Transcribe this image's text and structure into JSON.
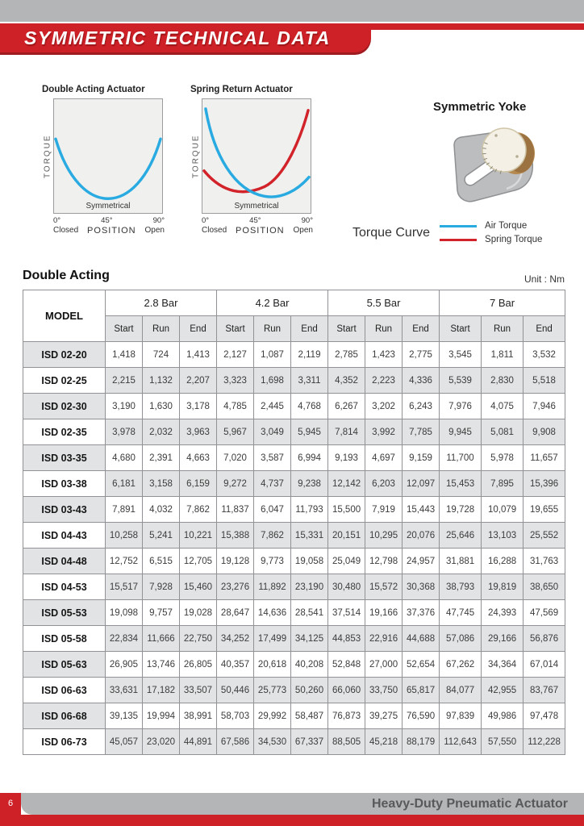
{
  "header": {
    "title": "SYMMETRIC TECHNICAL DATA",
    "accent_red": "#ce2127",
    "bar_gray": "#b3b5b7"
  },
  "charts": {
    "axis": {
      "y_label": "TORQUE",
      "x_label": "POSITION",
      "inner_label": "Symmetrical",
      "ticks": [
        "0°",
        "45°",
        "90°"
      ],
      "tick_caption_left": "Closed",
      "tick_caption_right": "Open"
    },
    "items": [
      {
        "title": "Double Acting Actuator"
      },
      {
        "title": "Spring Return Actuator"
      }
    ]
  },
  "yoke": {
    "title": "Symmetric Yoke"
  },
  "legend": {
    "label": "Torque Curve",
    "items": [
      {
        "name": "Air Torque",
        "color": "#29abe2"
      },
      {
        "name": "Spring Torque",
        "color": "#d2232a"
      }
    ]
  },
  "section": {
    "title": "Double Acting",
    "unit": "Unit : Nm"
  },
  "table": {
    "model_header": "MODEL",
    "pressure_groups": [
      "2.8 Bar",
      "4.2 Bar",
      "5.5 Bar",
      "7 Bar"
    ],
    "sub_headers": [
      "Start",
      "Run",
      "End"
    ],
    "rows": [
      {
        "model": "ISD 02-20",
        "values": [
          "1,418",
          "724",
          "1,413",
          "2,127",
          "1,087",
          "2,119",
          "2,785",
          "1,423",
          "2,775",
          "3,545",
          "1,811",
          "3,532"
        ]
      },
      {
        "model": "ISD 02-25",
        "values": [
          "2,215",
          "1,132",
          "2,207",
          "3,323",
          "1,698",
          "3,311",
          "4,352",
          "2,223",
          "4,336",
          "5,539",
          "2,830",
          "5,518"
        ]
      },
      {
        "model": "ISD 02-30",
        "values": [
          "3,190",
          "1,630",
          "3,178",
          "4,785",
          "2,445",
          "4,768",
          "6,267",
          "3,202",
          "6,243",
          "7,976",
          "4,075",
          "7,946"
        ]
      },
      {
        "model": "ISD 02-35",
        "values": [
          "3,978",
          "2,032",
          "3,963",
          "5,967",
          "3,049",
          "5,945",
          "7,814",
          "3,992",
          "7,785",
          "9,945",
          "5,081",
          "9,908"
        ]
      },
      {
        "model": "ISD 03-35",
        "values": [
          "4,680",
          "2,391",
          "4,663",
          "7,020",
          "3,587",
          "6,994",
          "9,193",
          "4,697",
          "9,159",
          "11,700",
          "5,978",
          "11,657"
        ]
      },
      {
        "model": "ISD 03-38",
        "values": [
          "6,181",
          "3,158",
          "6,159",
          "9,272",
          "4,737",
          "9,238",
          "12,142",
          "6,203",
          "12,097",
          "15,453",
          "7,895",
          "15,396"
        ]
      },
      {
        "model": "ISD 03-43",
        "values": [
          "7,891",
          "4,032",
          "7,862",
          "11,837",
          "6,047",
          "11,793",
          "15,500",
          "7,919",
          "15,443",
          "19,728",
          "10,079",
          "19,655"
        ]
      },
      {
        "model": "ISD 04-43",
        "values": [
          "10,258",
          "5,241",
          "10,221",
          "15,388",
          "7,862",
          "15,331",
          "20,151",
          "10,295",
          "20,076",
          "25,646",
          "13,103",
          "25,552"
        ]
      },
      {
        "model": "ISD 04-48",
        "values": [
          "12,752",
          "6,515",
          "12,705",
          "19,128",
          "9,773",
          "19,058",
          "25,049",
          "12,798",
          "24,957",
          "31,881",
          "16,288",
          "31,763"
        ]
      },
      {
        "model": "ISD 04-53",
        "values": [
          "15,517",
          "7,928",
          "15,460",
          "23,276",
          "11,892",
          "23,190",
          "30,480",
          "15,572",
          "30,368",
          "38,793",
          "19,819",
          "38,650"
        ]
      },
      {
        "model": "ISD 05-53",
        "values": [
          "19,098",
          "9,757",
          "19,028",
          "28,647",
          "14,636",
          "28,541",
          "37,514",
          "19,166",
          "37,376",
          "47,745",
          "24,393",
          "47,569"
        ]
      },
      {
        "model": "ISD 05-58",
        "values": [
          "22,834",
          "11,666",
          "22,750",
          "34,252",
          "17,499",
          "34,125",
          "44,853",
          "22,916",
          "44,688",
          "57,086",
          "29,166",
          "56,876"
        ]
      },
      {
        "model": "ISD 05-63",
        "values": [
          "26,905",
          "13,746",
          "26,805",
          "40,357",
          "20,618",
          "40,208",
          "52,848",
          "27,000",
          "52,654",
          "67,262",
          "34,364",
          "67,014"
        ]
      },
      {
        "model": "ISD 06-63",
        "values": [
          "33,631",
          "17,182",
          "33,507",
          "50,446",
          "25,773",
          "50,260",
          "66,060",
          "33,750",
          "65,817",
          "84,077",
          "42,955",
          "83,767"
        ]
      },
      {
        "model": "ISD 06-68",
        "values": [
          "39,135",
          "19,994",
          "38,991",
          "58,703",
          "29,992",
          "58,487",
          "76,873",
          "39,275",
          "76,590",
          "97,839",
          "49,986",
          "97,478"
        ]
      },
      {
        "model": "ISD 06-73",
        "values": [
          "45,057",
          "23,020",
          "44,891",
          "67,586",
          "34,530",
          "67,337",
          "88,505",
          "45,218",
          "88,179",
          "112,643",
          "57,550",
          "112,228"
        ]
      }
    ]
  },
  "footer": {
    "page_number": "6",
    "text": "Heavy-Duty Pneumatic Actuator"
  }
}
